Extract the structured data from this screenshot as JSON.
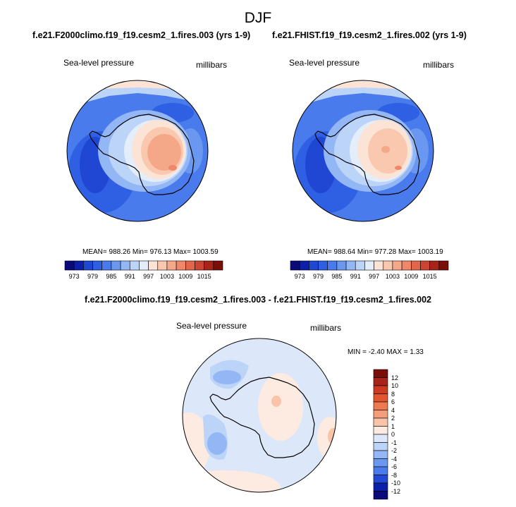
{
  "season": "DJF",
  "left_panel": {
    "title": "f.e21.F2000climo.f19_f19.cesm2_1.fires.003 (yrs 1-9)",
    "variable": "Sea-level pressure",
    "units": "millibars",
    "stats": "MEAN= 988.26  Min= 976.13  Max= 1003.59"
  },
  "right_panel": {
    "title": "f.e21.FHIST.f19_f19.cesm2_1.fires.002 (yrs 1-9)",
    "variable": "Sea-level pressure",
    "units": "millibars",
    "stats": "MEAN= 988.64  Min= 977.28  Max= 1003.19"
  },
  "difference_panel": {
    "title": "f.e21.F2000climo.f19_f19.cesm2_1.fires.003 - f.e21.FHIST.f19_f19.cesm2_1.fires.002",
    "variable": "Sea-level pressure",
    "units": "millibars",
    "stats": "MIN =  -2.40 MAX =   1.33"
  },
  "colorbar_main": {
    "tick_labels": [
      "973",
      "979",
      "985",
      "991",
      "997",
      "1003",
      "1009",
      "1015"
    ],
    "colors": [
      "#0a0a7a",
      "#0b1fa8",
      "#1f47d4",
      "#2f5fe3",
      "#4a7bec",
      "#6a97f0",
      "#93b6f4",
      "#bcd4f8",
      "#e4eefb",
      "#fbe4d6",
      "#f9c8ae",
      "#f5a888",
      "#f0876a",
      "#e3654a",
      "#cc4532",
      "#a82418",
      "#7a0f0a"
    ]
  },
  "colorbar_diff": {
    "tick_labels": [
      "12",
      "10",
      "8",
      "6",
      "4",
      "2",
      "1",
      "0",
      "-1",
      "-2",
      "-4",
      "-6",
      "-8",
      "-10",
      "-12"
    ],
    "colors": [
      "#7a0f0a",
      "#a82418",
      "#cc3a20",
      "#e3552e",
      "#ef7a50",
      "#f59e7c",
      "#f9c4a8",
      "#fdeae0",
      "#dce8fa",
      "#bcd4f8",
      "#93b6f4",
      "#6a97f0",
      "#4a7bec",
      "#2248d4",
      "#0b1fa8",
      "#0a0a7a"
    ]
  }
}
